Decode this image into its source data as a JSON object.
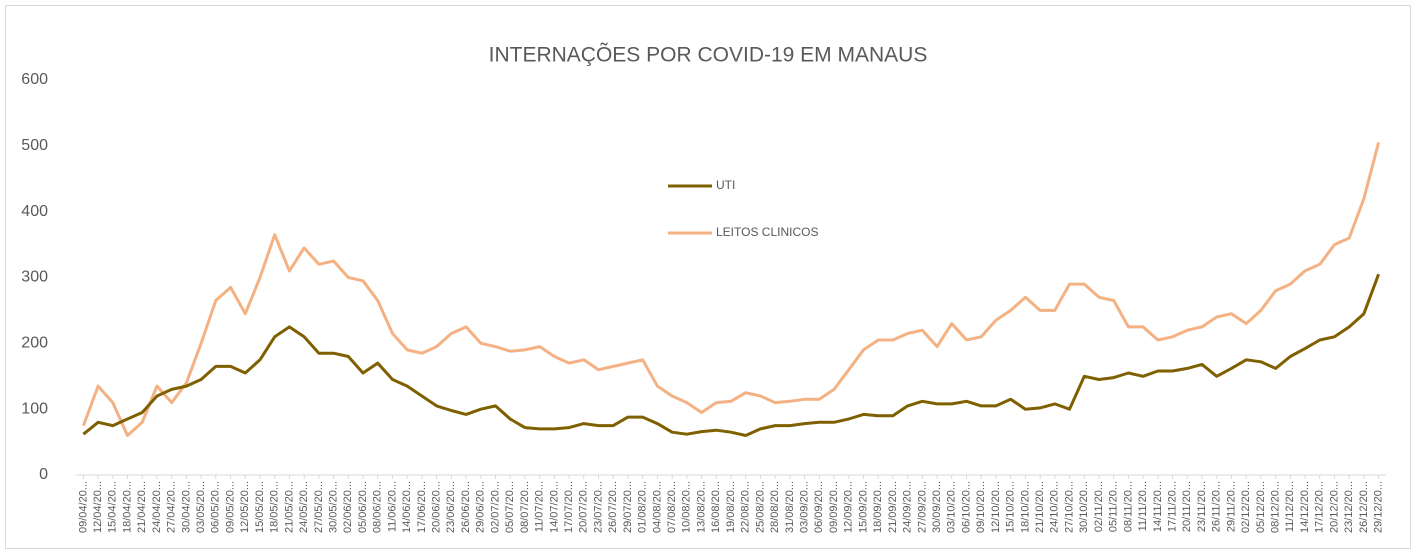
{
  "chart_data": {
    "type": "line",
    "title": "INTERNAÇÕES POR COVID-19 EM MANAUS",
    "categories": [
      "09/04/20...",
      "12/04/20...",
      "15/04/20...",
      "18/04/20...",
      "21/04/20...",
      "24/04/20...",
      "27/04/20...",
      "30/04/20...",
      "03/05/20...",
      "06/05/20...",
      "09/05/20...",
      "12/05/20...",
      "15/05/20...",
      "18/05/20...",
      "21/05/20...",
      "24/05/20...",
      "27/05/20...",
      "30/05/20...",
      "02/06/20...",
      "05/06/20...",
      "08/06/20...",
      "11/06/20...",
      "14/06/20...",
      "17/06/20...",
      "20/06/20...",
      "23/06/20...",
      "26/06/20...",
      "29/06/20...",
      "02/07/20...",
      "05/07/20...",
      "08/07/20...",
      "11/07/20...",
      "14/07/20...",
      "17/07/20...",
      "20/07/20...",
      "23/07/20...",
      "26/07/20...",
      "29/07/20...",
      "01/08/20...",
      "04/08/20...",
      "07/08/20...",
      "10/08/20...",
      "13/08/20...",
      "16/08/20...",
      "19/08/20...",
      "22/08/20...",
      "25/08/20...",
      "28/08/20...",
      "31/08/20...",
      "03/09/20...",
      "06/09/20...",
      "09/09/20...",
      "12/09/20...",
      "15/09/20...",
      "18/09/20...",
      "21/09/20...",
      "24/09/20...",
      "27/09/20...",
      "30/09/20...",
      "03/10/20...",
      "06/10/20...",
      "09/10/20...",
      "12/10/20...",
      "15/10/20...",
      "18/10/20...",
      "21/10/20...",
      "24/10/20...",
      "27/10/20...",
      "30/10/20...",
      "02/11/20...",
      "05/11/20...",
      "08/11/20...",
      "11/11/20...",
      "14/11/20...",
      "17/11/20...",
      "20/11/20...",
      "23/11/20...",
      "26/11/20...",
      "29/11/20...",
      "02/12/20...",
      "05/12/20...",
      "08/12/20...",
      "11/12/20...",
      "14/12/20...",
      "17/12/20...",
      "20/12/20...",
      "23/12/20...",
      "26/12/20...",
      "29/12/20..."
    ],
    "series": [
      {
        "name": "UTI",
        "color": "#7f6000",
        "values": [
          62,
          80,
          75,
          85,
          95,
          120,
          130,
          135,
          145,
          165,
          165,
          155,
          175,
          210,
          225,
          210,
          185,
          185,
          180,
          155,
          170,
          145,
          135,
          120,
          105,
          98,
          92,
          100,
          105,
          85,
          72,
          70,
          70,
          72,
          78,
          75,
          75,
          88,
          88,
          78,
          65,
          62,
          66,
          68,
          65,
          60,
          70,
          75,
          75,
          78,
          80,
          80,
          85,
          92,
          90,
          90,
          105,
          112,
          108,
          108,
          112,
          105,
          105,
          115,
          100,
          102,
          108,
          100,
          150,
          145,
          148,
          155,
          150,
          158,
          158,
          162,
          168,
          150,
          162,
          175,
          172,
          162,
          180,
          192,
          205,
          210,
          225,
          245,
          305
        ]
      },
      {
        "name": "LEITOS CLINICOS",
        "color": "#f4b183",
        "values": [
          75,
          135,
          110,
          60,
          80,
          135,
          110,
          140,
          200,
          265,
          285,
          245,
          300,
          365,
          310,
          345,
          320,
          325,
          300,
          295,
          265,
          215,
          190,
          185,
          195,
          215,
          225,
          200,
          195,
          188,
          190,
          195,
          180,
          170,
          175,
          160,
          165,
          170,
          175,
          135,
          120,
          110,
          95,
          110,
          112,
          125,
          120,
          110,
          112,
          115,
          115,
          130,
          160,
          190,
          205,
          205,
          215,
          220,
          195,
          230,
          205,
          210,
          235,
          250,
          270,
          250,
          250,
          290,
          290,
          270,
          265,
          225,
          225,
          205,
          210,
          220,
          225,
          240,
          245,
          230,
          250,
          280,
          290,
          310,
          320,
          350,
          360,
          420,
          505
        ]
      }
    ],
    "ylim": [
      0,
      600
    ],
    "yticks": [
      0,
      100,
      200,
      300,
      400,
      500,
      600
    ],
    "grid": false
  }
}
